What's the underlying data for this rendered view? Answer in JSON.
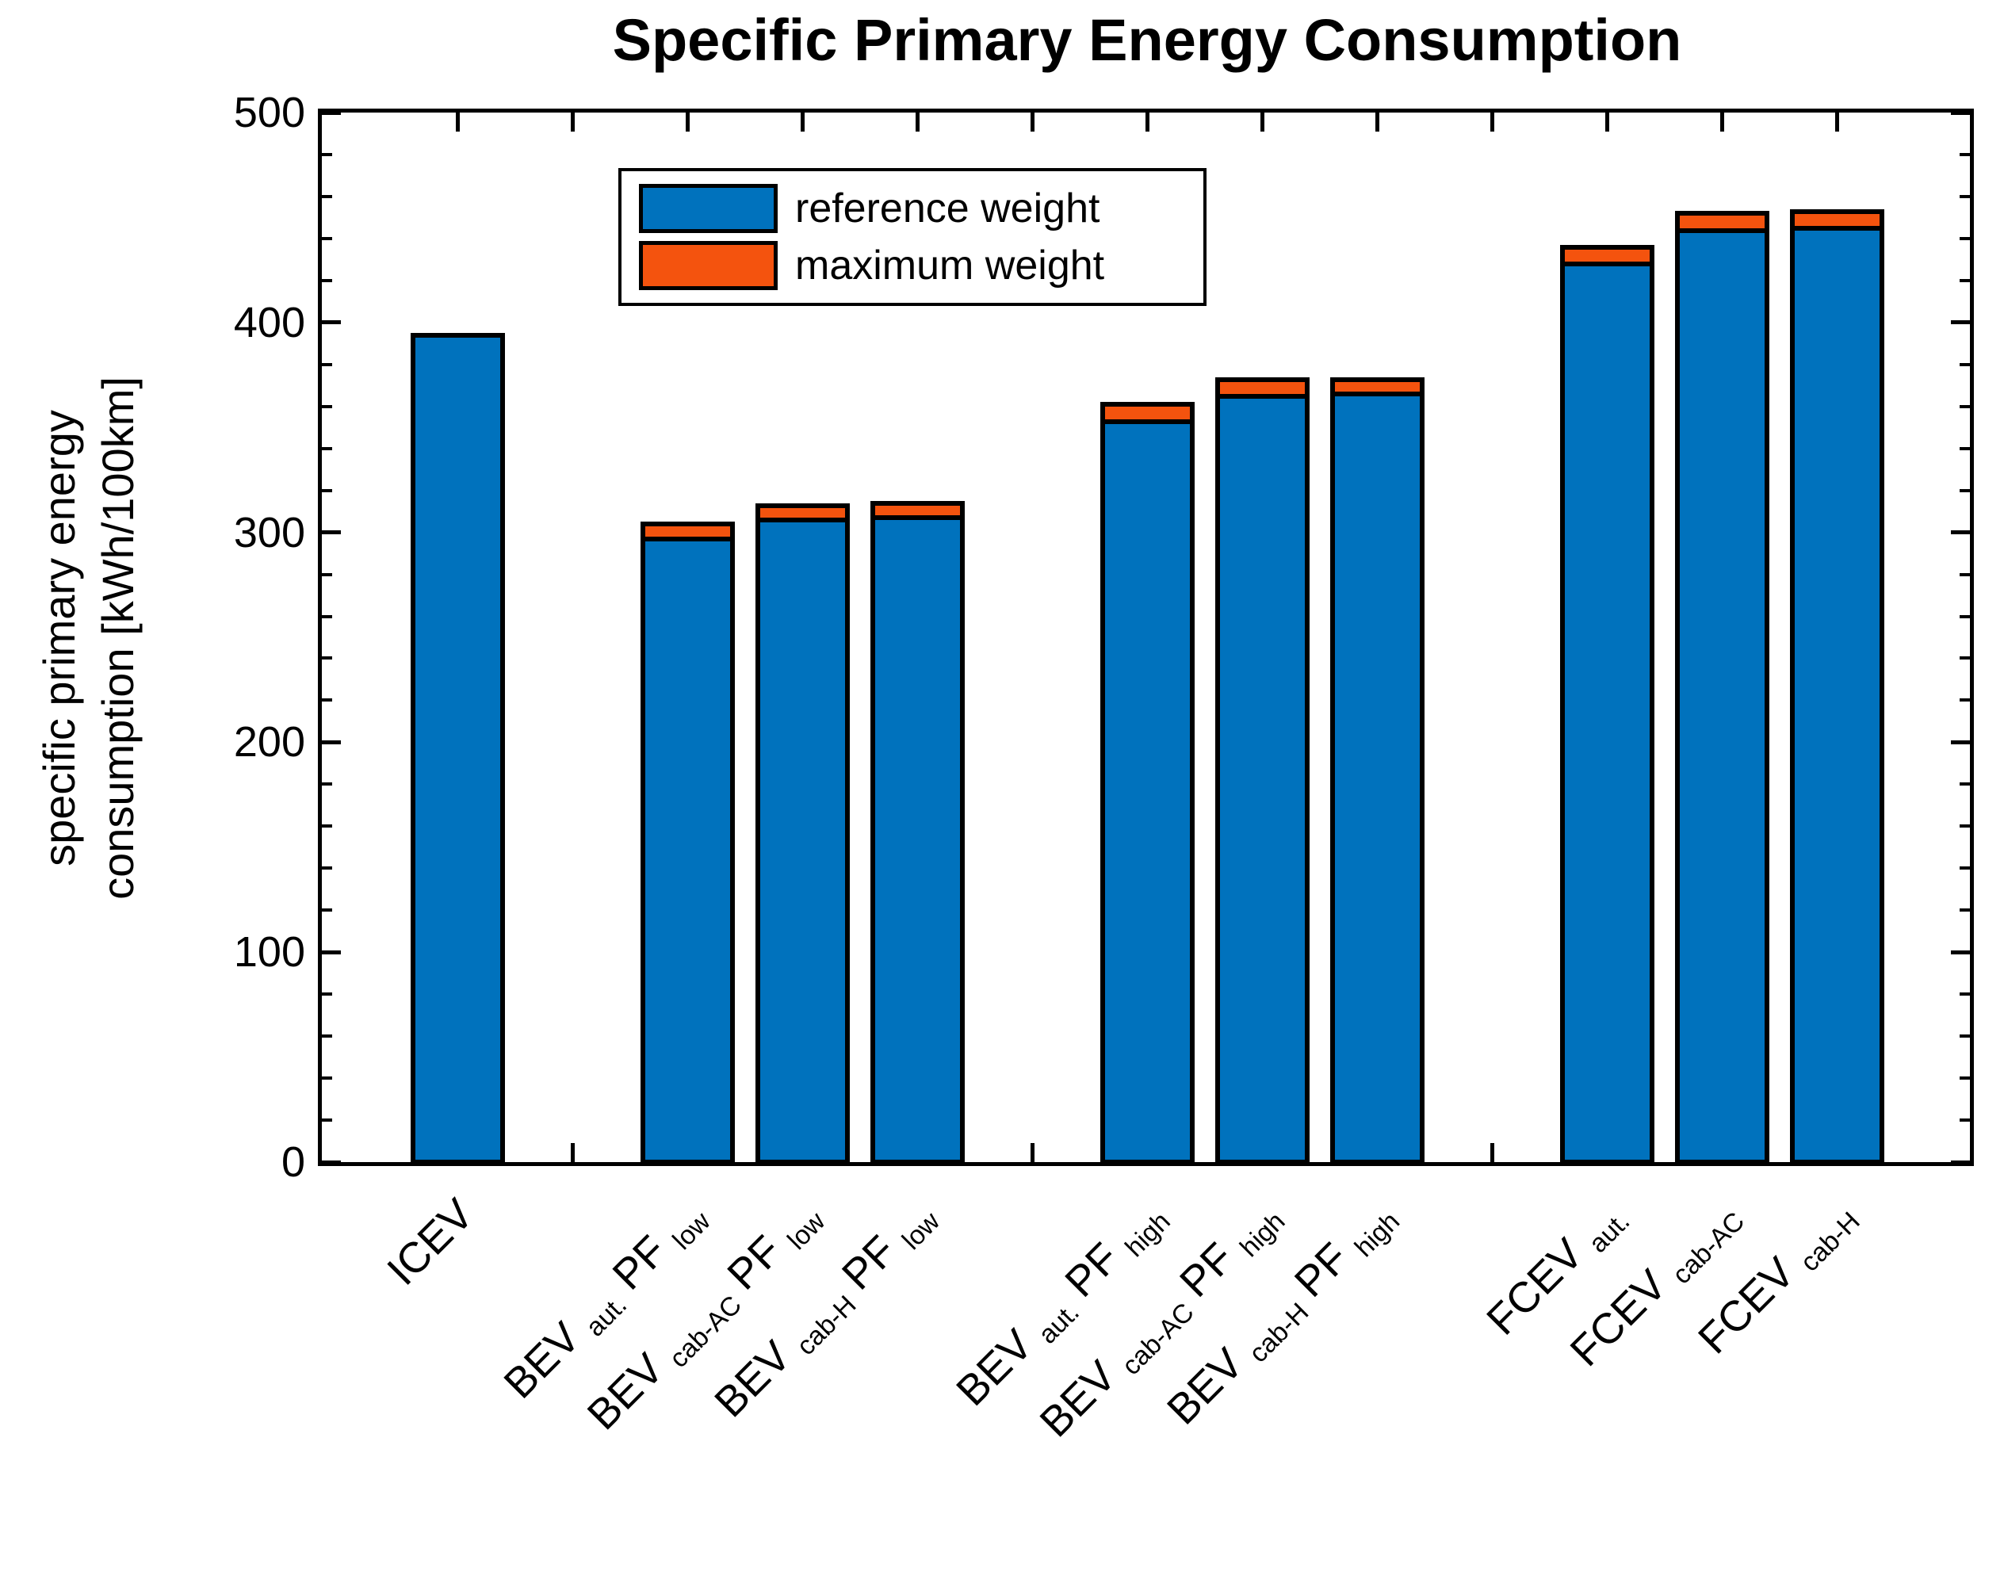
{
  "chart_data": {
    "type": "bar",
    "stacked": true,
    "title": "Specific Primary Energy Consumption",
    "ylabel": "specific primary energy consumption [kWh/100km]",
    "ylabel_line1": "specific primary energy",
    "ylabel_line2": "consumption [kWh/100km]",
    "xlabel": "",
    "ylim": [
      0,
      500
    ],
    "yticks": [
      "0",
      "100",
      "200",
      "300",
      "400",
      "500"
    ],
    "y_minor_tick_step": 20,
    "grid": false,
    "legend_position": "upper-left-inside",
    "colors": {
      "reference": "#0072BD",
      "maximum": "#F4530E",
      "axis": "#000000",
      "background": "#FFFFFF"
    },
    "categories": [
      "ICEV",
      "BEV aut. PF low",
      "BEV cab-AC PF low",
      "BEV cab-H PF low",
      "BEV aut. PF high",
      "BEV cab-AC PF high",
      "BEV cab-H PF high",
      "FCEV aut.",
      "FCEV cab-AC",
      "FCEV cab-H"
    ],
    "category_label_parts": [
      [
        {
          "t": "ICEV"
        }
      ],
      [
        {
          "t": "BEV "
        },
        {
          "t": "aut.",
          "sub": true
        },
        {
          "t": " PF "
        },
        {
          "t": "low",
          "sub": true
        }
      ],
      [
        {
          "t": "BEV "
        },
        {
          "t": "cab-AC",
          "sub": true
        },
        {
          "t": " PF "
        },
        {
          "t": "low",
          "sub": true
        }
      ],
      [
        {
          "t": "BEV "
        },
        {
          "t": "cab-H",
          "sub": true
        },
        {
          "t": " PF "
        },
        {
          "t": "low",
          "sub": true
        }
      ],
      [
        {
          "t": "BEV "
        },
        {
          "t": "aut.",
          "sub": true
        },
        {
          "t": " PF "
        },
        {
          "t": "high",
          "sub": true
        }
      ],
      [
        {
          "t": "BEV "
        },
        {
          "t": "cab-AC",
          "sub": true
        },
        {
          "t": " PF "
        },
        {
          "t": "high",
          "sub": true
        }
      ],
      [
        {
          "t": "BEV "
        },
        {
          "t": "cab-H",
          "sub": true
        },
        {
          "t": " PF "
        },
        {
          "t": "high",
          "sub": true
        }
      ],
      [
        {
          "t": "FCEV "
        },
        {
          "t": "aut.",
          "sub": true
        }
      ],
      [
        {
          "t": "FCEV "
        },
        {
          "t": "cab-AC",
          "sub": true
        }
      ],
      [
        {
          "t": "FCEV "
        },
        {
          "t": "cab-H",
          "sub": true
        }
      ]
    ],
    "series": [
      {
        "name": "reference weight",
        "values": [
          395,
          298,
          307,
          308,
          354,
          366,
          367,
          429,
          445,
          446
        ]
      },
      {
        "name": "maximum weight",
        "values": [
          0,
          7,
          7,
          7,
          8,
          8,
          7,
          8,
          8,
          8
        ]
      }
    ],
    "bar_slots": [
      0,
      2,
      3,
      4,
      6,
      7,
      8,
      10,
      11,
      12
    ],
    "x_gap_tick_slots": [
      1,
      5,
      9
    ]
  }
}
